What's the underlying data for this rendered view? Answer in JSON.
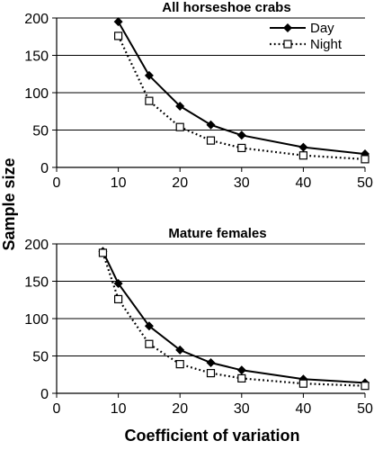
{
  "chart_data": [
    {
      "type": "line",
      "title": "All horseshoe crabs",
      "xlim": [
        0,
        50
      ],
      "ylim": [
        0,
        200
      ],
      "xticks": [
        "0",
        "10",
        "20",
        "30",
        "40",
        "50"
      ],
      "yticks": [
        "0",
        "50",
        "100",
        "150",
        "200"
      ],
      "grid": "horizontal",
      "legend": "top-right",
      "series": [
        {
          "name": "Day",
          "style": "solid",
          "marker": "filled-diamond",
          "x": [
            10,
            15,
            20,
            25,
            30,
            40,
            50
          ],
          "y": [
            195,
            123,
            82,
            57,
            43,
            27,
            18
          ]
        },
        {
          "name": "Night",
          "style": "dotted",
          "marker": "open-square",
          "x": [
            10,
            15,
            20,
            25,
            30,
            40,
            50
          ],
          "y": [
            176,
            89,
            54,
            36,
            26,
            16,
            11
          ]
        }
      ]
    },
    {
      "type": "line",
      "title": "Mature females",
      "xlim": [
        0,
        50
      ],
      "ylim": [
        0,
        200
      ],
      "xticks": [
        "0",
        "10",
        "20",
        "30",
        "40",
        "50"
      ],
      "yticks": [
        "0",
        "50",
        "100",
        "150",
        "200"
      ],
      "grid": "horizontal",
      "series": [
        {
          "name": "Day",
          "style": "solid",
          "marker": "filled-diamond",
          "x": [
            7.5,
            10,
            15,
            20,
            25,
            30,
            40,
            50
          ],
          "y": [
            190,
            147,
            90,
            58,
            41,
            31,
            19,
            14
          ]
        },
        {
          "name": "Night",
          "style": "dotted",
          "marker": "open-square",
          "x": [
            7.5,
            10,
            15,
            20,
            25,
            30,
            40,
            50
          ],
          "y": [
            188,
            126,
            66,
            39,
            27,
            20,
            13,
            10
          ]
        }
      ]
    }
  ],
  "ylabel": "Sample size",
  "xlabel": "Coefficient of variation"
}
